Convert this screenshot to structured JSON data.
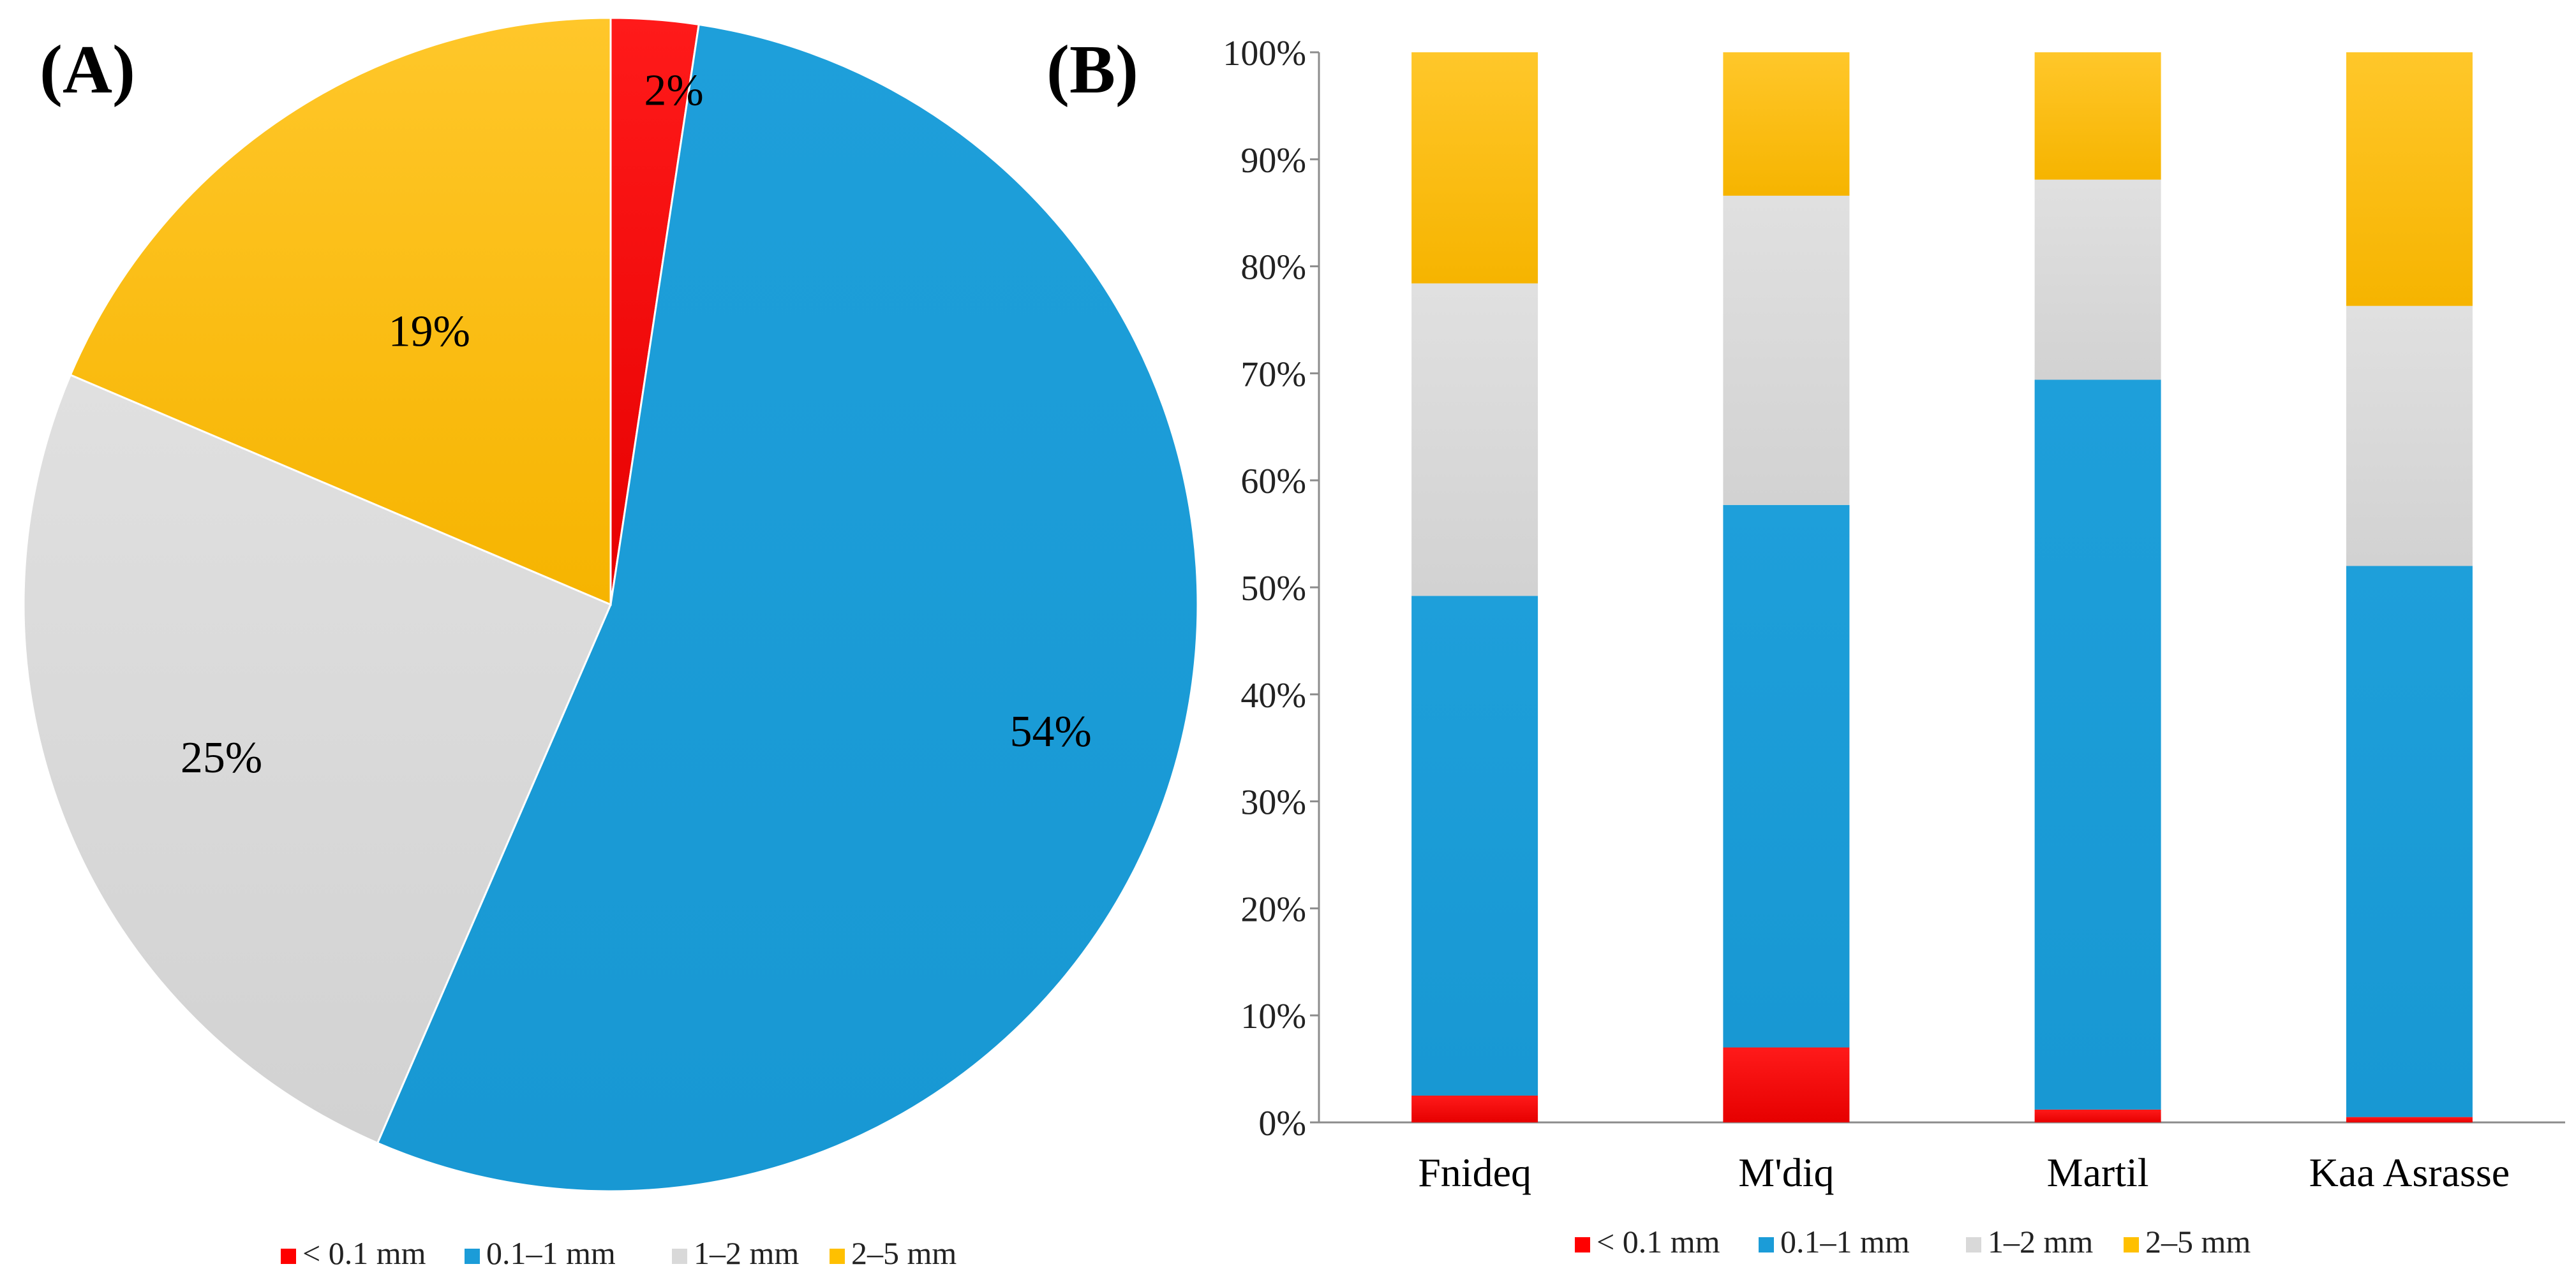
{
  "chart_data": [
    {
      "panel": "(A)",
      "type": "pie",
      "categories": [
        "< 0.1 mm",
        "0.1–1 mm",
        "1–2 mm",
        "2–5 mm"
      ],
      "values": [
        2.4,
        54.1,
        24.9,
        18.6
      ],
      "labels": [
        "2%",
        "54%",
        "25%",
        "19%"
      ],
      "colors": [
        "#FF0000",
        "#1B9CD8",
        "#D9D9D9",
        "#FFC000"
      ],
      "legend": [
        "< 0.1 mm",
        "0.1–1 mm",
        "1–2 mm",
        "2–5 mm"
      ],
      "legend_position": "bottom"
    },
    {
      "panel": "(B)",
      "type": "bar",
      "stacked": true,
      "categories": [
        "Fnideq",
        "M'diq",
        "Martil",
        "Kaa Asrasse"
      ],
      "series": [
        {
          "name": "< 0.1 mm",
          "color": "#FF0000",
          "values": [
            2.5,
            7.0,
            1.2,
            0.5
          ]
        },
        {
          "name": "0.1–1 mm",
          "color": "#1B9CD8",
          "values": [
            46.7,
            50.7,
            68.2,
            51.5
          ]
        },
        {
          "name": "1–2 mm",
          "color": "#D9D9D9",
          "values": [
            29.2,
            28.9,
            18.7,
            24.3
          ]
        },
        {
          "name": "2–5 mm",
          "color": "#FFC000",
          "values": [
            21.6,
            13.4,
            11.9,
            23.7
          ]
        }
      ],
      "ylim": [
        0,
        100
      ],
      "yticks": [
        "0%",
        "10%",
        "20%",
        "30%",
        "40%",
        "50%",
        "60%",
        "70%",
        "80%",
        "90%",
        "100%"
      ],
      "xlabel": "",
      "ylabel": "",
      "legend": [
        "< 0.1 mm",
        "0.1–1 mm",
        "1–2 mm",
        "2–5 mm"
      ],
      "legend_position": "bottom"
    }
  ]
}
